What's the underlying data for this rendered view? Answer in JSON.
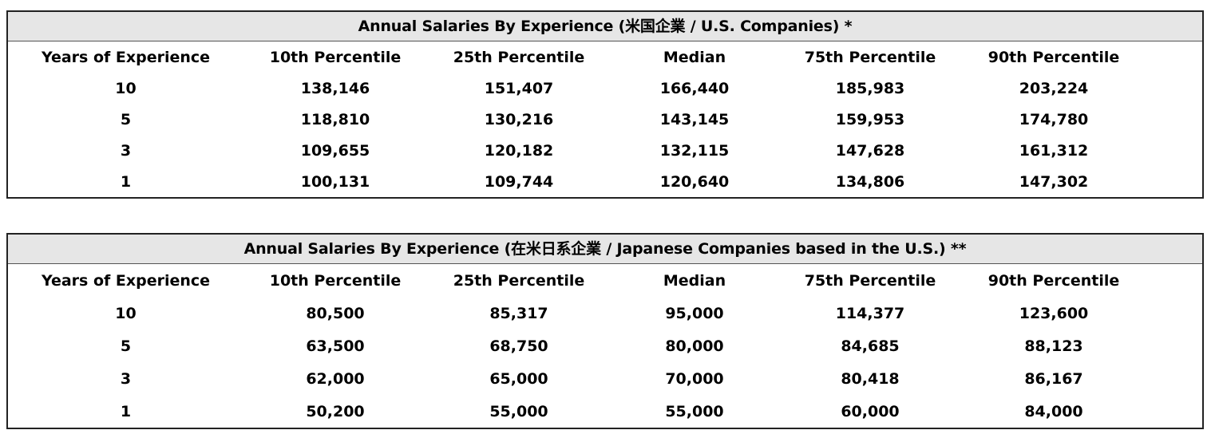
{
  "tables": [
    {
      "title": "Annual Salaries By Experience (米国企業 / U.S. Companies)  *",
      "headers": [
        "Years of Experience",
        "10th Percentile",
        "25th Percentile",
        "Median",
        "75th Percentile",
        "90th Percentile"
      ],
      "rows": [
        [
          "10",
          "138,146",
          "151,407",
          "166,440",
          "185,983",
          "203,224"
        ],
        [
          "5",
          "118,810",
          "130,216",
          "143,145",
          "159,953",
          "174,780"
        ],
        [
          "3",
          "109,655",
          "120,182",
          "132,115",
          "147,628",
          "161,312"
        ],
        [
          "1",
          "100,131",
          "109,744",
          "120,640",
          "134,806",
          "147,302"
        ]
      ]
    },
    {
      "title": "Annual Salaries By Experience (在米日系企業 / Japanese Companies based in the U.S.)  **",
      "headers": [
        "Years of Experience",
        "10th Percentile",
        "25th Percentile",
        "Median",
        "75th Percentile",
        "90th Percentile"
      ],
      "rows": [
        [
          "10",
          "80,500",
          "85,317",
          "95,000",
          "114,377",
          "123,600"
        ],
        [
          "5",
          "63,500",
          "68,750",
          "80,000",
          "84,685",
          "88,123"
        ],
        [
          "3",
          "62,000",
          "65,000",
          "70,000",
          "80,418",
          "86,167"
        ],
        [
          "1",
          "50,200",
          "55,000",
          "55,000",
          "60,000",
          "84,000"
        ]
      ]
    }
  ]
}
